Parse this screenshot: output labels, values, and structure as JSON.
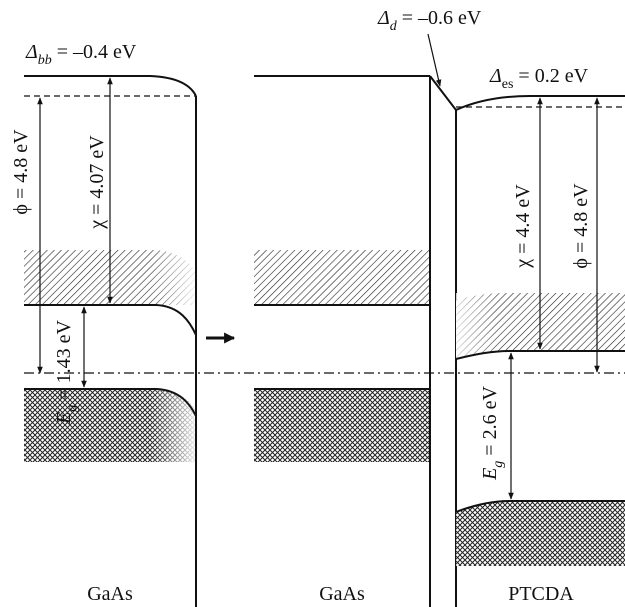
{
  "labels": {
    "delta_bb": {
      "sym": "Δ",
      "sub": "bb",
      "value": " = –0.4 eV"
    },
    "delta_d": {
      "sym": "Δ",
      "sub": "d",
      "value": " = –0.6 eV"
    },
    "delta_es": {
      "sym": "Δ",
      "sub": "es",
      "value": " = 0.2 eV"
    },
    "gaas_phi": "ϕ = 4.8 eV",
    "gaas_chi": "χ = 4.07 eV",
    "gaas_eg": {
      "sym": "E",
      "sub": "g",
      "value": " = 1.43 eV"
    },
    "ptcda_chi": "χ = 4.4 eV",
    "ptcda_phi": "ϕ = 4.8 eV",
    "ptcda_eg": {
      "sym": "E",
      "sub": "g",
      "value": " = 2.6 eV"
    },
    "bottom_gaas_left": "GaAs",
    "bottom_gaas_mid": "GaAs",
    "bottom_ptcda": "PTCDA"
  },
  "colors": {
    "ink": "#111111",
    "background": "#ffffff"
  }
}
